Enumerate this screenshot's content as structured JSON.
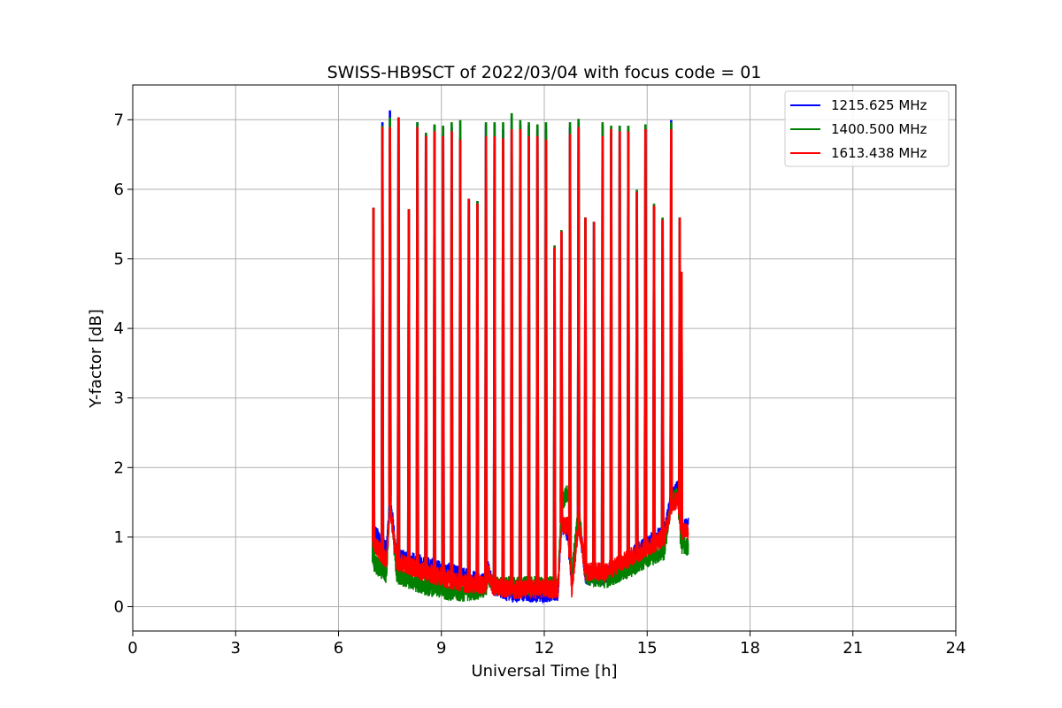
{
  "chart_data": {
    "type": "line",
    "title": "SWISS-HB9SCT of 2022/03/04 with focus code = 01",
    "xlabel": "Universal Time [h]",
    "ylabel": "Y-factor [dB]",
    "xlim": [
      0,
      24
    ],
    "ylim": [
      -0.35,
      7.5
    ],
    "xticks": [
      0,
      3,
      6,
      9,
      12,
      15,
      18,
      21,
      24
    ],
    "yticks": [
      0,
      1,
      2,
      3,
      4,
      5,
      6,
      7
    ],
    "grid": true,
    "legend_position": "top-right",
    "series": [
      {
        "name": "1215.625 MHz",
        "color": "#0000ff",
        "peaks": [
          [
            7.02,
            5.72
          ],
          [
            7.28,
            6.95
          ],
          [
            7.5,
            7.12
          ],
          [
            7.75,
            7.02
          ],
          [
            8.05,
            5.7
          ],
          [
            8.3,
            6.95
          ],
          [
            8.55,
            6.78
          ],
          [
            8.8,
            6.9
          ],
          [
            9.05,
            6.78
          ],
          [
            9.3,
            6.88
          ],
          [
            9.55,
            6.72
          ],
          [
            9.8,
            5.85
          ],
          [
            10.05,
            5.8
          ],
          [
            10.3,
            6.92
          ],
          [
            10.55,
            6.92
          ],
          [
            10.8,
            6.85
          ],
          [
            11.05,
            7.02
          ],
          [
            11.3,
            6.92
          ],
          [
            11.55,
            6.9
          ],
          [
            11.8,
            6.85
          ],
          [
            12.05,
            6.85
          ],
          [
            12.3,
            5.15
          ],
          [
            12.5,
            5.38
          ],
          [
            12.75,
            6.88
          ],
          [
            13.0,
            6.95
          ],
          [
            13.2,
            5.58
          ],
          [
            13.45,
            5.52
          ],
          [
            13.7,
            6.9
          ],
          [
            13.95,
            6.8
          ],
          [
            14.2,
            6.9
          ],
          [
            14.45,
            6.85
          ],
          [
            14.7,
            5.95
          ],
          [
            14.95,
            6.85
          ],
          [
            15.2,
            5.75
          ],
          [
            15.45,
            5.55
          ],
          [
            15.7,
            6.98
          ],
          [
            15.95,
            5.58
          ],
          [
            16.0,
            4.8
          ]
        ],
        "baseline": [
          [
            7.0,
            1.1
          ],
          [
            7.4,
            0.8
          ],
          [
            7.5,
            1.6
          ],
          [
            7.7,
            0.7
          ],
          [
            8.5,
            0.6
          ],
          [
            9.5,
            0.45
          ],
          [
            10.3,
            0.35
          ],
          [
            10.35,
            0.55
          ],
          [
            10.5,
            0.3
          ],
          [
            11.0,
            0.2
          ],
          [
            12.0,
            0.2
          ],
          [
            12.4,
            0.2
          ],
          [
            12.5,
            1.2
          ],
          [
            12.7,
            1.05
          ],
          [
            12.8,
            0.3
          ],
          [
            13.0,
            1.3
          ],
          [
            13.2,
            0.45
          ],
          [
            13.8,
            0.45
          ],
          [
            14.5,
            0.7
          ],
          [
            15.0,
            0.9
          ],
          [
            15.5,
            1.05
          ],
          [
            15.7,
            1.55
          ],
          [
            15.9,
            1.7
          ],
          [
            16.0,
            1.1
          ],
          [
            16.2,
            1.15
          ]
        ]
      },
      {
        "name": "1400.500 MHz",
        "color": "#008000",
        "peaks": [
          [
            7.02,
            5.72
          ],
          [
            7.28,
            6.9
          ],
          [
            7.5,
            7.02
          ],
          [
            7.75,
            7.02
          ],
          [
            8.05,
            5.7
          ],
          [
            8.3,
            6.95
          ],
          [
            8.55,
            6.8
          ],
          [
            8.8,
            6.92
          ],
          [
            9.05,
            6.9
          ],
          [
            9.3,
            6.95
          ],
          [
            9.55,
            6.98
          ],
          [
            9.8,
            5.85
          ],
          [
            10.05,
            5.82
          ],
          [
            10.3,
            6.95
          ],
          [
            10.55,
            6.95
          ],
          [
            10.8,
            6.95
          ],
          [
            11.05,
            7.08
          ],
          [
            11.3,
            6.98
          ],
          [
            11.55,
            6.95
          ],
          [
            11.8,
            6.92
          ],
          [
            12.05,
            6.95
          ],
          [
            12.3,
            5.18
          ],
          [
            12.5,
            5.4
          ],
          [
            12.75,
            6.95
          ],
          [
            13.0,
            7.0
          ],
          [
            13.2,
            5.58
          ],
          [
            13.45,
            5.52
          ],
          [
            13.7,
            6.95
          ],
          [
            13.95,
            6.9
          ],
          [
            14.2,
            6.9
          ],
          [
            14.45,
            6.9
          ],
          [
            14.7,
            5.98
          ],
          [
            14.95,
            6.92
          ],
          [
            15.2,
            5.78
          ],
          [
            15.45,
            5.58
          ],
          [
            15.7,
            6.95
          ],
          [
            15.95,
            5.58
          ],
          [
            16.0,
            4.8
          ]
        ],
        "baseline": [
          [
            7.0,
            0.65
          ],
          [
            7.4,
            0.45
          ],
          [
            7.5,
            1.5
          ],
          [
            7.7,
            0.45
          ],
          [
            8.5,
            0.3
          ],
          [
            9.5,
            0.2
          ],
          [
            10.3,
            0.25
          ],
          [
            10.35,
            0.45
          ],
          [
            10.5,
            0.3
          ],
          [
            11.0,
            0.3
          ],
          [
            12.0,
            0.3
          ],
          [
            12.4,
            0.3
          ],
          [
            12.5,
            1.5
          ],
          [
            12.7,
            1.65
          ],
          [
            12.8,
            0.45
          ],
          [
            13.0,
            1.45
          ],
          [
            13.2,
            0.45
          ],
          [
            13.8,
            0.4
          ],
          [
            14.5,
            0.55
          ],
          [
            15.0,
            0.7
          ],
          [
            15.5,
            0.8
          ],
          [
            15.7,
            1.5
          ],
          [
            15.9,
            1.6
          ],
          [
            16.0,
            0.9
          ],
          [
            16.2,
            0.85
          ]
        ]
      },
      {
        "name": "1613.438 MHz",
        "color": "#ff0000",
        "peaks": [
          [
            7.02,
            5.72
          ],
          [
            7.28,
            6.88
          ],
          [
            7.5,
            6.88
          ],
          [
            7.75,
            7.02
          ],
          [
            8.05,
            5.7
          ],
          [
            8.3,
            6.88
          ],
          [
            8.55,
            6.75
          ],
          [
            8.8,
            6.82
          ],
          [
            9.05,
            6.75
          ],
          [
            9.3,
            6.82
          ],
          [
            9.55,
            6.7
          ],
          [
            9.8,
            5.85
          ],
          [
            10.05,
            5.78
          ],
          [
            10.3,
            6.75
          ],
          [
            10.55,
            6.75
          ],
          [
            10.8,
            6.72
          ],
          [
            11.05,
            6.85
          ],
          [
            11.3,
            6.85
          ],
          [
            11.55,
            6.75
          ],
          [
            11.8,
            6.75
          ],
          [
            12.05,
            6.7
          ],
          [
            12.3,
            5.15
          ],
          [
            12.5,
            5.38
          ],
          [
            12.75,
            6.78
          ],
          [
            13.0,
            6.88
          ],
          [
            13.2,
            5.58
          ],
          [
            13.45,
            5.52
          ],
          [
            13.7,
            6.75
          ],
          [
            13.95,
            6.85
          ],
          [
            14.2,
            6.82
          ],
          [
            14.45,
            6.82
          ],
          [
            14.7,
            5.95
          ],
          [
            14.95,
            6.85
          ],
          [
            15.2,
            5.75
          ],
          [
            15.45,
            5.55
          ],
          [
            15.7,
            6.85
          ],
          [
            15.95,
            5.58
          ],
          [
            16.0,
            4.8
          ]
        ],
        "baseline": [
          [
            7.0,
            0.95
          ],
          [
            7.4,
            0.65
          ],
          [
            7.5,
            1.45
          ],
          [
            7.7,
            0.65
          ],
          [
            8.5,
            0.5
          ],
          [
            9.5,
            0.35
          ],
          [
            10.3,
            0.3
          ],
          [
            10.35,
            0.5
          ],
          [
            10.5,
            0.3
          ],
          [
            11.0,
            0.25
          ],
          [
            12.0,
            0.25
          ],
          [
            12.4,
            0.25
          ],
          [
            12.5,
            1.2
          ],
          [
            12.7,
            1.15
          ],
          [
            12.8,
            0.25
          ],
          [
            13.0,
            1.2
          ],
          [
            13.2,
            0.5
          ],
          [
            13.8,
            0.5
          ],
          [
            14.5,
            0.7
          ],
          [
            15.0,
            0.85
          ],
          [
            15.5,
            1.0
          ],
          [
            15.7,
            1.45
          ],
          [
            15.9,
            1.55
          ],
          [
            16.0,
            1.1
          ],
          [
            16.2,
            1.1
          ]
        ]
      }
    ]
  }
}
